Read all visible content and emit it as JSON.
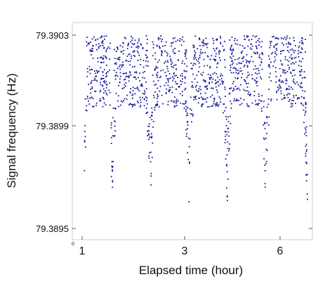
{
  "chart_data": {
    "type": "scatter",
    "title": "",
    "xlabel": "Elapsed time (hour)",
    "ylabel": "Signal frequency (Hz)",
    "x_tick_labels": [
      "0",
      "1",
      "3",
      "6"
    ],
    "y_tick_labels": [
      "79.3903",
      "79.3899",
      "79.3895"
    ],
    "y_ticks": [
      79.3903,
      79.3899,
      79.3895
    ],
    "ylim": [
      79.38945,
      79.39035
    ],
    "grid": false,
    "legend": "none",
    "marker_color": "#1a1a9c",
    "series": [
      {
        "segments": [
          {
            "x_start": 0.3,
            "x_end": 1.1,
            "dip_at_start": true
          },
          {
            "x_start": 1.1,
            "x_end": 2.2
          },
          {
            "x_start": 2.2,
            "x_end": 3.3
          },
          {
            "x_start": 3.3,
            "x_end": 4.4
          },
          {
            "x_start": 4.4,
            "x_end": 5.5
          },
          {
            "x_start": 5.5,
            "x_end": 6.7
          }
        ],
        "dip_min": 79.38955,
        "plateau_band": [
          79.39,
          79.3903
        ]
      }
    ]
  }
}
